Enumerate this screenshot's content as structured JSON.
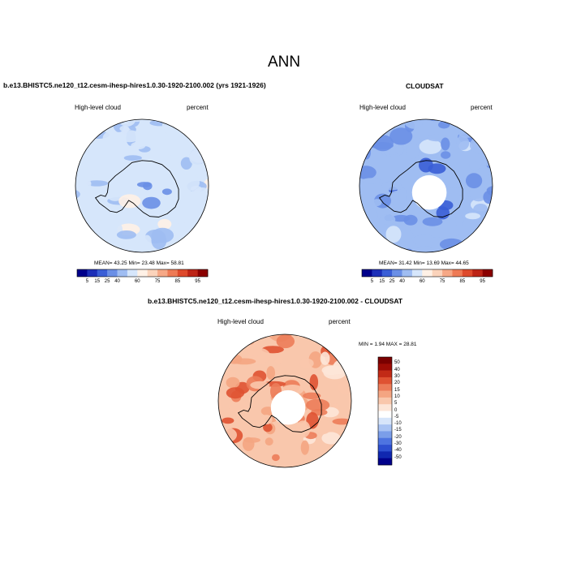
{
  "page": {
    "title": "ANN"
  },
  "colormaps": {
    "absolute": [
      "#00008b",
      "#1c2fb8",
      "#3a5ed6",
      "#6a8fe6",
      "#9fbdf2",
      "#d6e6fb",
      "#fff1e6",
      "#fbd3bb",
      "#f6a886",
      "#ee7a55",
      "#de4a2c",
      "#bd2416",
      "#8b0000"
    ],
    "difference": [
      "#00008b",
      "#1027b0",
      "#2d4fd0",
      "#4e74e0",
      "#7b9ee9",
      "#a9c3f3",
      "#d7e5fa",
      "#ffffff",
      "#fde6d8",
      "#f9c7ac",
      "#f4a582",
      "#ec7c59",
      "#df5232",
      "#c22a16",
      "#9e0c05",
      "#7a0000"
    ]
  },
  "chart_data": [
    {
      "type": "heatmap",
      "projection": "south-polar-stereographic",
      "title": "b.e13.BHISTC5.ne120_t12.cesm-ihesp-hires1.0.30-1920-2100.002 (yrs 1921-1926)",
      "left_label": "High-level cloud",
      "right_label": "percent",
      "stats": {
        "mean": "43.25",
        "min": "23.48",
        "max": "58.81"
      },
      "stats_text": "MEAN=  43.25  Min=  23.48  Max=  58.81",
      "colorbar": {
        "orientation": "horizontal",
        "ticks": [
          "5",
          "15",
          "25",
          "40",
          "60",
          "75",
          "85",
          "95"
        ]
      },
      "polar_hole": false
    },
    {
      "type": "heatmap",
      "projection": "south-polar-stereographic",
      "title": "CLOUDSAT",
      "left_label": "High-level cloud",
      "right_label": "percent",
      "stats": {
        "mean": "31.42",
        "min": "13.69",
        "max": "44.65"
      },
      "stats_text": "MEAN=  31.42  Min=  13.69  Max=  44.65",
      "colorbar": {
        "orientation": "horizontal",
        "ticks": [
          "5",
          "15",
          "25",
          "40",
          "60",
          "75",
          "85",
          "95"
        ]
      },
      "polar_hole": true
    },
    {
      "type": "heatmap",
      "projection": "south-polar-stereographic",
      "title": "b.e13.BHISTC5.ne120_t12.cesm-ihesp-hires1.0.30-1920-2100.002 - CLOUDSAT",
      "left_label": "High-level cloud",
      "right_label": "percent",
      "stats": {
        "min": "1.94",
        "max": "28.81"
      },
      "stats_text": "MIN =  1.94 MAX =  28.81",
      "colorbar": {
        "orientation": "vertical",
        "ticks": [
          "50",
          "40",
          "30",
          "20",
          "15",
          "10",
          "5",
          "0",
          "-5",
          "-10",
          "-15",
          "-20",
          "-30",
          "-40",
          "-50"
        ]
      },
      "polar_hole": true
    }
  ]
}
